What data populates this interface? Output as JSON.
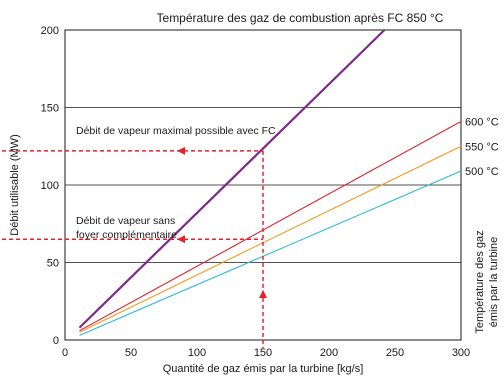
{
  "chart_data": {
    "type": "line",
    "title": "Température des gaz de combustion après FC 850 °C",
    "xlabel": "Quantité de gaz émis par la turbine [kg/s]",
    "ylabel": "Débit utilisable (MW)",
    "right_label_line1": "Température des gaz",
    "right_label_line2": "émis par la turbine",
    "xlim": [
      0,
      300
    ],
    "ylim": [
      0,
      200
    ],
    "x_ticks": [
      "0",
      "50",
      "100",
      "150",
      "200",
      "250",
      "300"
    ],
    "y_ticks": [
      "0",
      "50",
      "100",
      "150",
      "200"
    ],
    "gridlines_y": [
      50,
      100,
      150,
      200
    ],
    "series": [
      {
        "name": "",
        "color": "#7b2a8a",
        "points": [
          [
            11,
            8
          ],
          [
            242,
            200
          ]
        ]
      },
      {
        "name": "600 °C",
        "color": "#d9232e",
        "points": [
          [
            11,
            6
          ],
          [
            300,
            141
          ]
        ]
      },
      {
        "name": "550 °C",
        "color": "#f29a1f",
        "points": [
          [
            11,
            5
          ],
          [
            300,
            125
          ]
        ]
      },
      {
        "name": "500 °C",
        "color": "#32b9d9",
        "points": [
          [
            11,
            3
          ],
          [
            300,
            109
          ]
        ]
      }
    ],
    "annotations": [
      {
        "line1": "Débit de vapeur maximal possible avec FC",
        "line2": ""
      },
      {
        "line1": "Débit de vapeur sans",
        "line2": "foyer complémentaire"
      }
    ],
    "reference_lines": {
      "x_value": 150,
      "y_values": [
        122,
        65
      ],
      "color": "#e8202a"
    }
  }
}
